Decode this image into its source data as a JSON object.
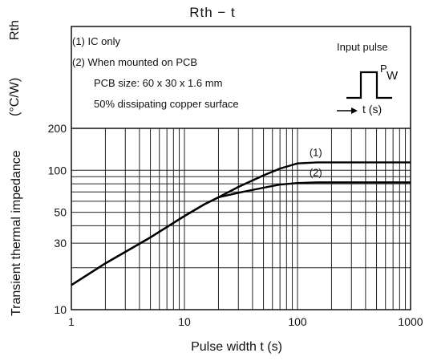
{
  "chart_data": {
    "type": "line",
    "title": "Rth  −  t",
    "xlabel": "Pulse width   t   (s)",
    "ylabel": "Transient thermal impedance",
    "yunit_symbol": "Rth",
    "yunit": "(°C/W)",
    "xscale": "log",
    "yscale": "log",
    "xlim": [
      1,
      1000
    ],
    "ylim": [
      10,
      200
    ],
    "grid": true,
    "x_ticks": [
      "1",
      "10",
      "100",
      "1000"
    ],
    "y_ticks": [
      {
        "value": 10,
        "label": "10"
      },
      {
        "value": 30,
        "label": "30"
      },
      {
        "value": 50,
        "label": "50"
      },
      {
        "value": 100,
        "label": "100"
      },
      {
        "value": 200,
        "label": "200"
      }
    ],
    "notes": [
      "(1)  IC only",
      "(2)  When mounted on PCB",
      "PCB size: 60 x 30 x 1.6 mm",
      "50% dissipating copper surface"
    ],
    "input_pulse": {
      "title": "Input pulse",
      "pw_label_p": "P",
      "pw_label_w": "W",
      "t_label": "t (s)"
    },
    "series": [
      {
        "name": "(1)",
        "x": [
          1,
          2,
          5,
          10,
          15,
          20,
          30,
          50,
          70,
          100,
          150,
          300,
          1000
        ],
        "y": [
          15,
          21.5,
          33,
          47,
          57,
          64,
          76,
          92,
          103,
          112,
          114,
          114,
          114
        ]
      },
      {
        "name": "(2)",
        "x": [
          1,
          2,
          5,
          10,
          15,
          20,
          30,
          50,
          70,
          100,
          150,
          300,
          1000
        ],
        "y": [
          15,
          21.5,
          33,
          47,
          57,
          64,
          69,
          75,
          79,
          81,
          82,
          82,
          82
        ]
      }
    ]
  }
}
